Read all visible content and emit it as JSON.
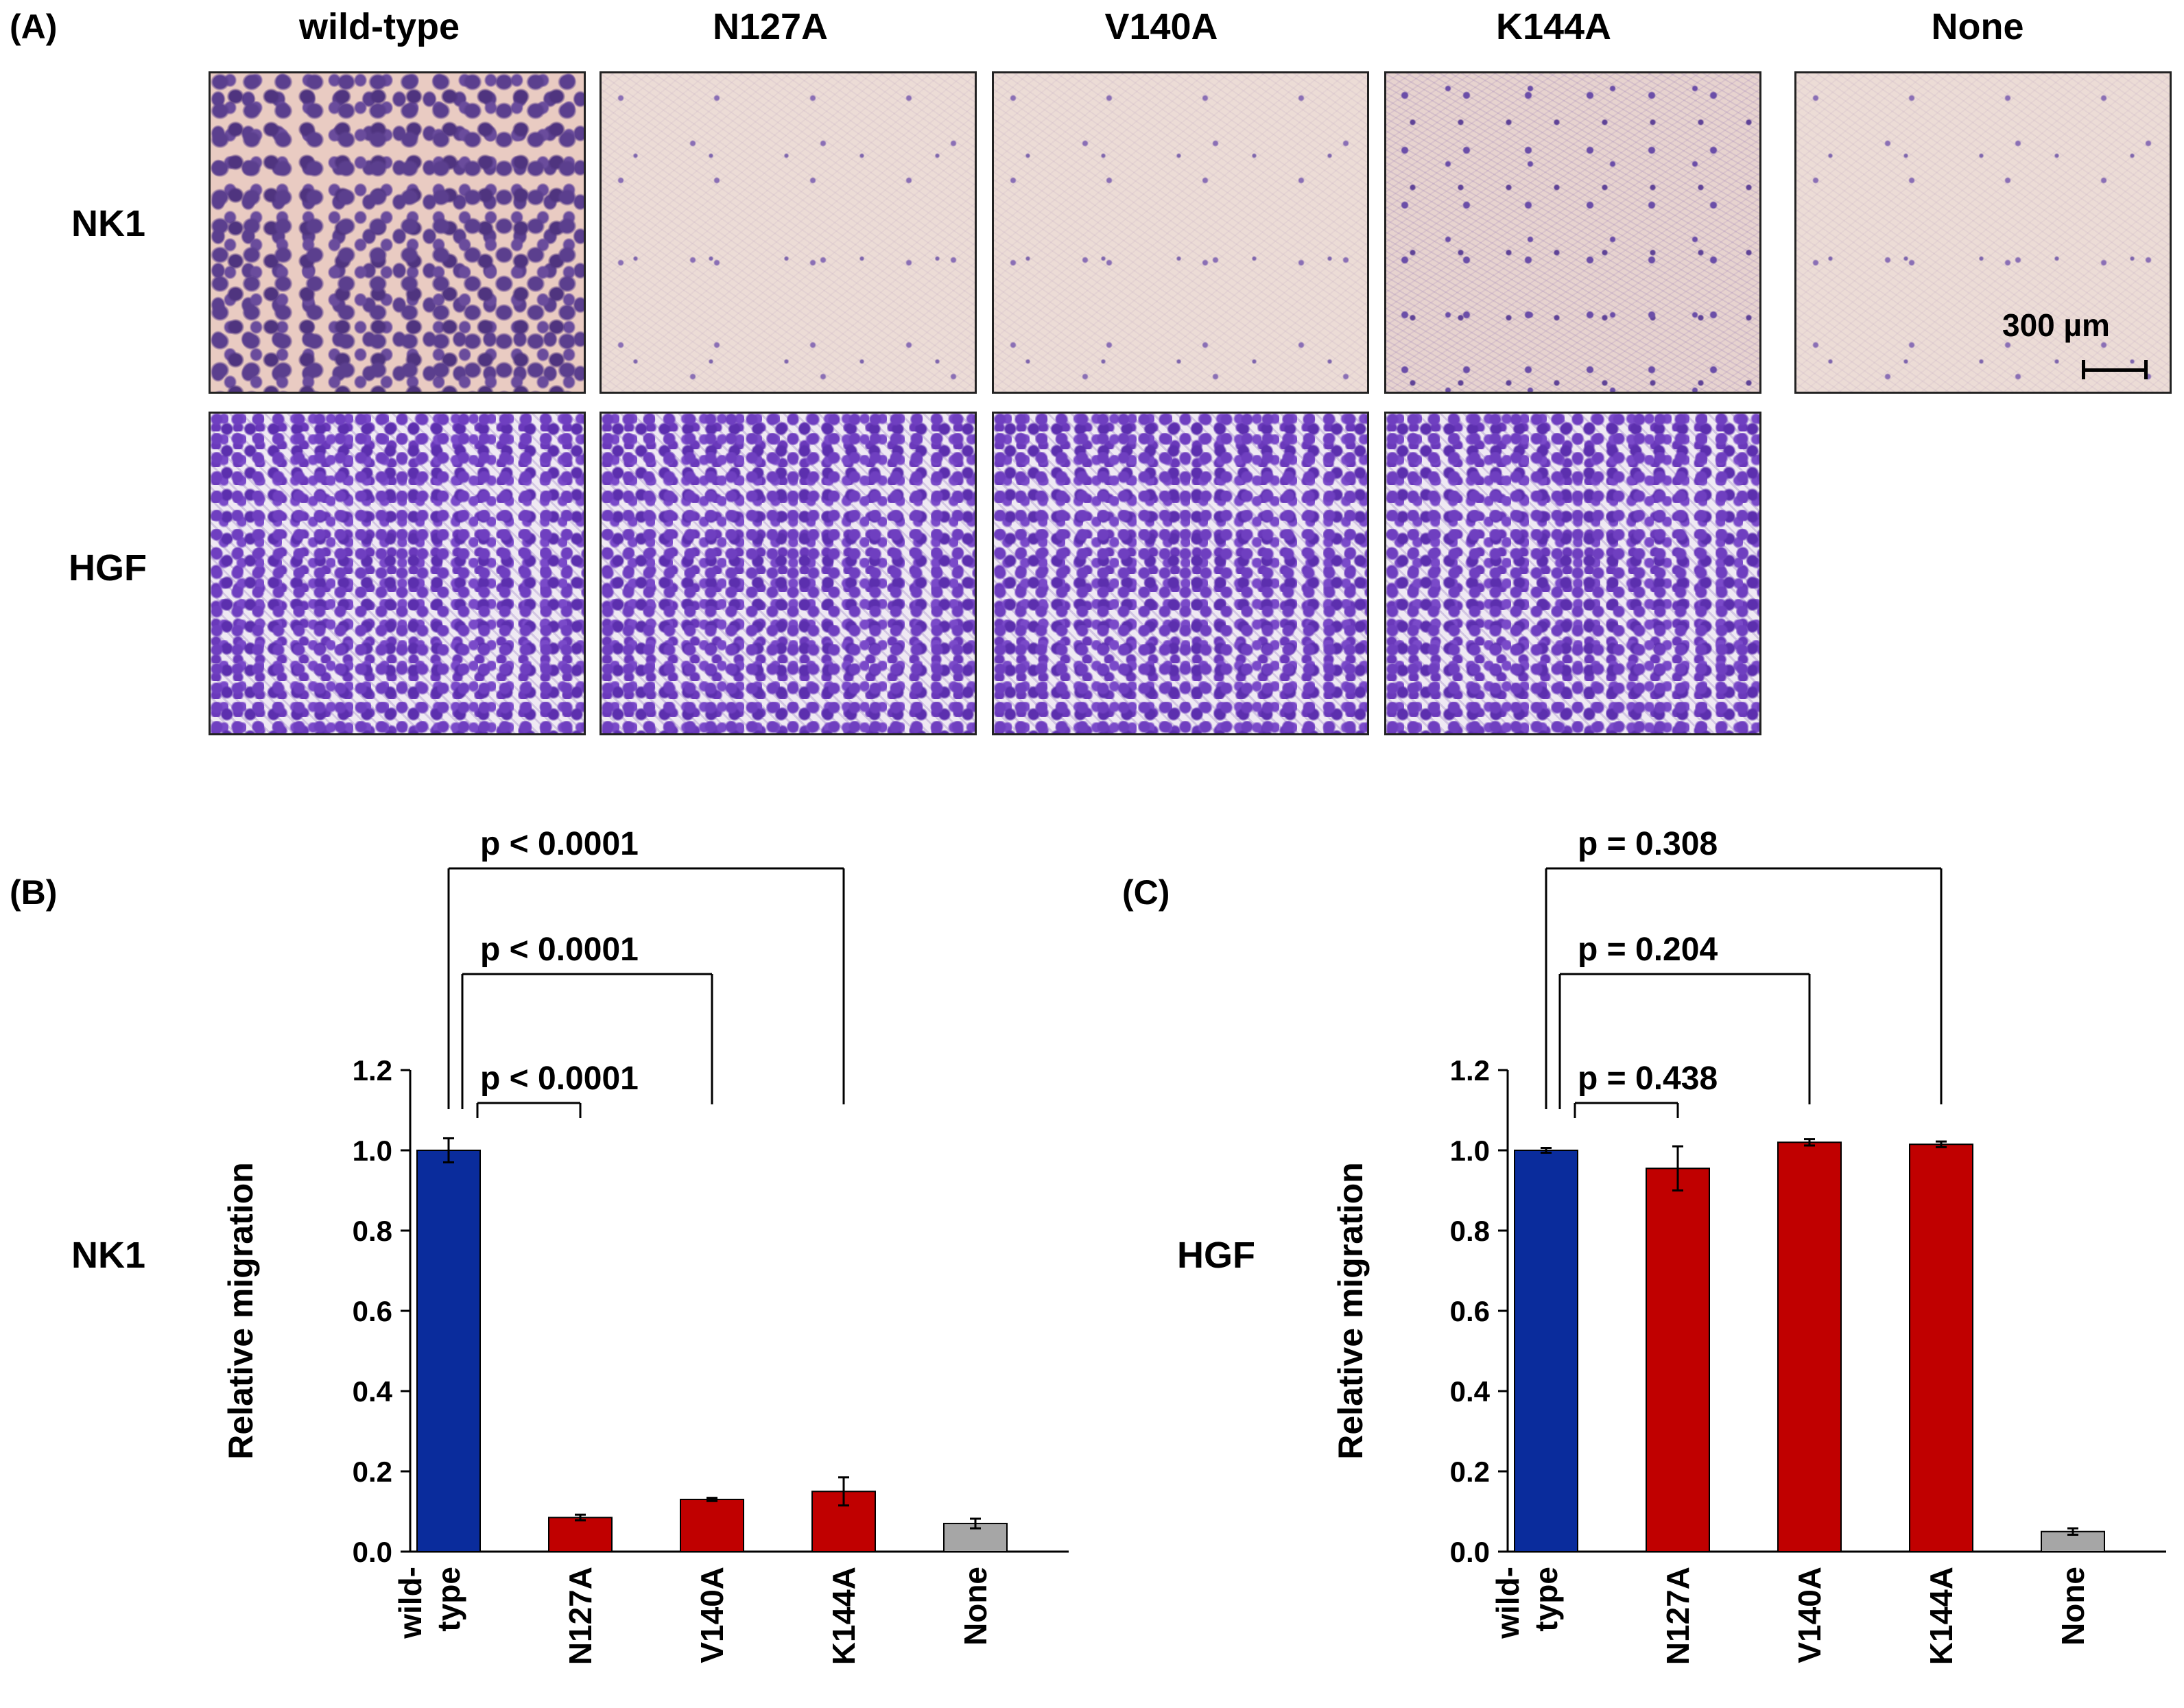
{
  "panel_labels": {
    "a": "(A)",
    "b": "(B)",
    "c": "(C)"
  },
  "micrographs": {
    "columns": [
      "wild-type",
      "N127A",
      "V140A",
      "K144A",
      "None"
    ],
    "rows": [
      "NK1",
      "HGF"
    ],
    "scale_bar": "300 µm"
  },
  "chart_data": [
    {
      "type": "bar",
      "panel": "(B)",
      "side_label": "NK1",
      "title": "",
      "xlabel": "",
      "ylabel": "Relative migration",
      "ylim": [
        0,
        1.2
      ],
      "yticks": [
        "0.0",
        "0.2",
        "0.4",
        "0.6",
        "0.8",
        "1.0",
        "1.2"
      ],
      "grid": false,
      "categories": [
        [
          "wild-",
          "type"
        ],
        [
          "N127A"
        ],
        [
          "V140A"
        ],
        [
          "K144A"
        ],
        [
          "None"
        ]
      ],
      "values": [
        1.0,
        0.085,
        0.13,
        0.15,
        0.07
      ],
      "errors": [
        0.03,
        0.007,
        0.004,
        0.035,
        0.012
      ],
      "colors": [
        "#0a2c9c",
        "#c00000",
        "#c00000",
        "#c00000",
        "#a6a6a6"
      ],
      "comparisons": [
        {
          "label": "p < 0.0001",
          "from": 0,
          "to": 1
        },
        {
          "label": "p < 0.0001",
          "from": 0,
          "to": 2
        },
        {
          "label": "p < 0.0001",
          "from": 0,
          "to": 3
        }
      ]
    },
    {
      "type": "bar",
      "panel": "(C)",
      "side_label": "HGF",
      "title": "",
      "xlabel": "",
      "ylabel": "Relative migration",
      "ylim": [
        0,
        1.2
      ],
      "yticks": [
        "0.0",
        "0.2",
        "0.4",
        "0.6",
        "0.8",
        "1.0",
        "1.2"
      ],
      "grid": false,
      "categories": [
        [
          "wild-",
          "type"
        ],
        [
          "N127A"
        ],
        [
          "V140A"
        ],
        [
          "K144A"
        ],
        [
          "None"
        ]
      ],
      "values": [
        1.0,
        0.955,
        1.02,
        1.015,
        0.05
      ],
      "errors": [
        0.006,
        0.055,
        0.008,
        0.007,
        0.008
      ],
      "colors": [
        "#0a2c9c",
        "#c00000",
        "#c00000",
        "#c00000",
        "#a6a6a6"
      ],
      "comparisons": [
        {
          "label": "p = 0.438",
          "from": 0,
          "to": 1
        },
        {
          "label": "p = 0.204",
          "from": 0,
          "to": 2
        },
        {
          "label": "p = 0.308",
          "from": 0,
          "to": 3
        }
      ]
    }
  ]
}
